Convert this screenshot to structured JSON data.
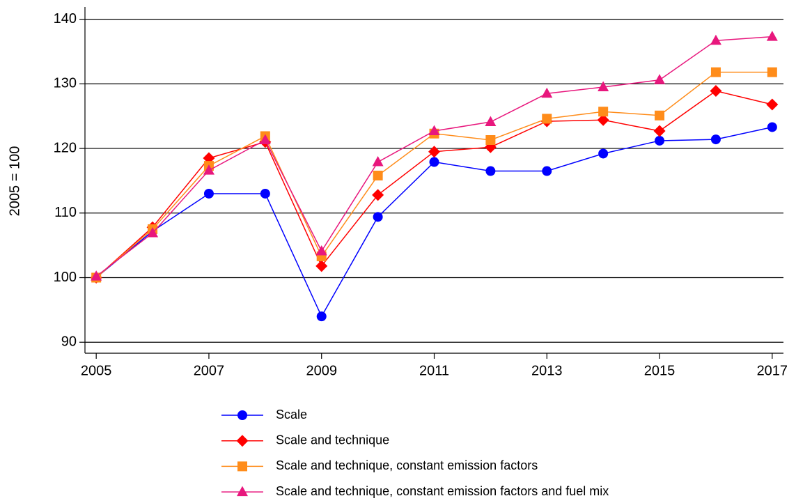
{
  "chart_data": {
    "type": "line",
    "ylabel": "2005 = 100",
    "x": [
      2005,
      2006,
      2007,
      2008,
      2009,
      2010,
      2011,
      2012,
      2013,
      2014,
      2015,
      2016,
      2017
    ],
    "series": [
      {
        "name": "Scale",
        "color": "#0000ff",
        "marker": "circle",
        "values": [
          100,
          107.2,
          113,
          113,
          94,
          109.4,
          117.9,
          116.5,
          116.5,
          119.2,
          121.2,
          121.4,
          123.3
        ]
      },
      {
        "name": "Scale and technique",
        "color": "#ff0000",
        "marker": "diamond",
        "values": [
          100,
          107.8,
          118.5,
          121,
          101.8,
          112.8,
          119.5,
          120.2,
          124.2,
          124.4,
          122.7,
          128.9,
          126.8
        ]
      },
      {
        "name": "Scale and technique, constant emission factors",
        "color": "#ff8c1a",
        "marker": "square",
        "values": [
          100,
          107.5,
          117.3,
          121.9,
          103.3,
          115.8,
          122.3,
          121.3,
          124.6,
          125.7,
          125.1,
          131.8,
          131.8
        ]
      },
      {
        "name": "Scale and technique, constant emission factors and fuel mix",
        "color": "#e8177d",
        "marker": "triangle",
        "values": [
          100.2,
          106.9,
          116.6,
          121.3,
          104.1,
          117.9,
          122.7,
          124.1,
          128.5,
          129.5,
          130.6,
          136.7,
          137.3
        ]
      }
    ],
    "xlim": [
      2004.8,
      2017.2
    ],
    "xticks": [
      2005,
      2007,
      2009,
      2011,
      2013,
      2015,
      2017
    ],
    "ylim": [
      88.3,
      141.9
    ],
    "yticks": [
      90,
      100,
      110,
      120,
      130,
      140
    ],
    "grid": true,
    "legend": "bottom"
  }
}
